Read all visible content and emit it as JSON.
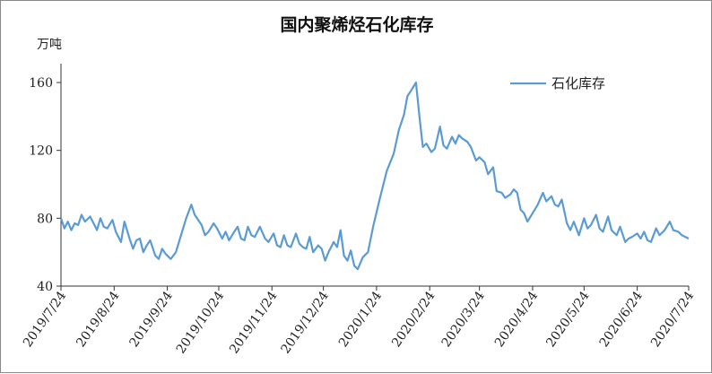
{
  "chart_data": {
    "type": "line",
    "title": "国内聚烯烃石化库存",
    "ylabel": "万吨",
    "ylim": [
      40,
      160
    ],
    "yticks": [
      40,
      80,
      120,
      160
    ],
    "xlim": [
      "2019-07-24",
      "2020-07-24"
    ],
    "xticks": [
      "2019/7/24",
      "2019/8/24",
      "2019/9/24",
      "2019/10/24",
      "2019/11/24",
      "2019/12/24",
      "2020/1/24",
      "2020/2/24",
      "2020/3/24",
      "2020/4/24",
      "2020/5/24",
      "2020/6/24",
      "2020/7/24"
    ],
    "grid": false,
    "legend_position": "top-right",
    "series": [
      {
        "name": "石化库存",
        "color": "#5b9bd5",
        "points": [
          [
            "2019-07-24",
            80
          ],
          [
            "2019-07-26",
            74
          ],
          [
            "2019-07-28",
            78
          ],
          [
            "2019-07-30",
            73
          ],
          [
            "2019-08-01",
            77
          ],
          [
            "2019-08-03",
            76
          ],
          [
            "2019-08-05",
            82
          ],
          [
            "2019-08-07",
            78
          ],
          [
            "2019-08-10",
            81
          ],
          [
            "2019-08-12",
            77
          ],
          [
            "2019-08-14",
            73
          ],
          [
            "2019-08-16",
            80
          ],
          [
            "2019-08-18",
            75
          ],
          [
            "2019-08-20",
            74
          ],
          [
            "2019-08-23",
            79
          ],
          [
            "2019-08-25",
            72
          ],
          [
            "2019-08-28",
            66
          ],
          [
            "2019-08-30",
            78
          ],
          [
            "2019-09-02",
            68
          ],
          [
            "2019-09-04",
            62
          ],
          [
            "2019-09-06",
            67
          ],
          [
            "2019-09-08",
            68
          ],
          [
            "2019-09-10",
            60
          ],
          [
            "2019-09-12",
            64
          ],
          [
            "2019-09-14",
            67
          ],
          [
            "2019-09-17",
            58
          ],
          [
            "2019-09-19",
            56
          ],
          [
            "2019-09-21",
            62
          ],
          [
            "2019-09-23",
            59
          ],
          [
            "2019-09-26",
            56
          ],
          [
            "2019-09-29",
            60
          ],
          [
            "2019-10-02",
            70
          ],
          [
            "2019-10-05",
            80
          ],
          [
            "2019-10-08",
            88
          ],
          [
            "2019-10-10",
            82
          ],
          [
            "2019-10-12",
            79
          ],
          [
            "2019-10-14",
            76
          ],
          [
            "2019-10-16",
            70
          ],
          [
            "2019-10-18",
            72
          ],
          [
            "2019-10-21",
            77
          ],
          [
            "2019-10-23",
            74
          ],
          [
            "2019-10-26",
            68
          ],
          [
            "2019-10-28",
            72
          ],
          [
            "2019-10-30",
            67
          ],
          [
            "2019-11-02",
            72
          ],
          [
            "2019-11-04",
            75
          ],
          [
            "2019-11-06",
            68
          ],
          [
            "2019-11-08",
            67
          ],
          [
            "2019-11-10",
            75
          ],
          [
            "2019-11-12",
            70
          ],
          [
            "2019-11-14",
            69
          ],
          [
            "2019-11-17",
            75
          ],
          [
            "2019-11-20",
            68
          ],
          [
            "2019-11-22",
            66
          ],
          [
            "2019-11-25",
            71
          ],
          [
            "2019-11-27",
            64
          ],
          [
            "2019-11-29",
            63
          ],
          [
            "2019-12-01",
            70
          ],
          [
            "2019-12-03",
            64
          ],
          [
            "2019-12-05",
            63
          ],
          [
            "2019-12-08",
            71
          ],
          [
            "2019-12-10",
            65
          ],
          [
            "2019-12-12",
            63
          ],
          [
            "2019-12-14",
            62
          ],
          [
            "2019-12-16",
            69
          ],
          [
            "2019-12-18",
            60
          ],
          [
            "2019-12-21",
            64
          ],
          [
            "2019-12-23",
            62
          ],
          [
            "2019-12-25",
            55
          ],
          [
            "2019-12-27",
            60
          ],
          [
            "2019-12-30",
            66
          ],
          [
            "2020-01-01",
            63
          ],
          [
            "2020-01-03",
            73
          ],
          [
            "2020-01-05",
            58
          ],
          [
            "2020-01-07",
            55
          ],
          [
            "2020-01-09",
            61
          ],
          [
            "2020-01-11",
            52
          ],
          [
            "2020-01-13",
            50
          ],
          [
            "2020-01-16",
            57
          ],
          [
            "2020-01-19",
            60
          ],
          [
            "2020-01-22",
            75
          ],
          [
            "2020-01-26",
            92
          ],
          [
            "2020-01-30",
            108
          ],
          [
            "2020-02-03",
            118
          ],
          [
            "2020-02-06",
            132
          ],
          [
            "2020-02-09",
            141
          ],
          [
            "2020-02-11",
            152
          ],
          [
            "2020-02-13",
            155
          ],
          [
            "2020-02-16",
            160
          ],
          [
            "2020-02-18",
            140
          ],
          [
            "2020-02-20",
            122
          ],
          [
            "2020-02-22",
            124
          ],
          [
            "2020-02-25",
            119
          ],
          [
            "2020-02-27",
            121
          ],
          [
            "2020-03-01",
            134
          ],
          [
            "2020-03-03",
            123
          ],
          [
            "2020-03-05",
            121
          ],
          [
            "2020-03-08",
            128
          ],
          [
            "2020-03-10",
            124
          ],
          [
            "2020-03-12",
            129
          ],
          [
            "2020-03-14",
            127
          ],
          [
            "2020-03-17",
            125
          ],
          [
            "2020-03-19",
            122
          ],
          [
            "2020-03-22",
            114
          ],
          [
            "2020-03-24",
            116
          ],
          [
            "2020-03-27",
            113
          ],
          [
            "2020-03-29",
            106
          ],
          [
            "2020-04-01",
            110
          ],
          [
            "2020-04-03",
            96
          ],
          [
            "2020-04-06",
            95
          ],
          [
            "2020-04-08",
            92
          ],
          [
            "2020-04-11",
            94
          ],
          [
            "2020-04-13",
            97
          ],
          [
            "2020-04-15",
            95
          ],
          [
            "2020-04-17",
            85
          ],
          [
            "2020-04-19",
            83
          ],
          [
            "2020-04-21",
            78
          ],
          [
            "2020-04-24",
            83
          ],
          [
            "2020-04-27",
            88
          ],
          [
            "2020-04-30",
            95
          ],
          [
            "2020-05-02",
            90
          ],
          [
            "2020-05-05",
            93
          ],
          [
            "2020-05-07",
            88
          ],
          [
            "2020-05-09",
            87
          ],
          [
            "2020-05-11",
            91
          ],
          [
            "2020-05-14",
            77
          ],
          [
            "2020-05-16",
            73
          ],
          [
            "2020-05-18",
            78
          ],
          [
            "2020-05-21",
            70
          ],
          [
            "2020-05-24",
            80
          ],
          [
            "2020-05-26",
            74
          ],
          [
            "2020-05-28",
            76
          ],
          [
            "2020-05-31",
            82
          ],
          [
            "2020-06-02",
            74
          ],
          [
            "2020-06-04",
            72
          ],
          [
            "2020-06-07",
            81
          ],
          [
            "2020-06-09",
            73
          ],
          [
            "2020-06-12",
            70
          ],
          [
            "2020-06-14",
            75
          ],
          [
            "2020-06-17",
            66
          ],
          [
            "2020-06-19",
            68
          ],
          [
            "2020-06-21",
            69
          ],
          [
            "2020-06-24",
            71
          ],
          [
            "2020-06-26",
            68
          ],
          [
            "2020-06-28",
            72
          ],
          [
            "2020-06-30",
            67
          ],
          [
            "2020-07-02",
            66
          ],
          [
            "2020-07-05",
            74
          ],
          [
            "2020-07-07",
            70
          ],
          [
            "2020-07-10",
            73
          ],
          [
            "2020-07-13",
            78
          ],
          [
            "2020-07-15",
            73
          ],
          [
            "2020-07-18",
            72
          ],
          [
            "2020-07-20",
            70
          ],
          [
            "2020-07-24",
            68
          ]
        ]
      }
    ]
  }
}
